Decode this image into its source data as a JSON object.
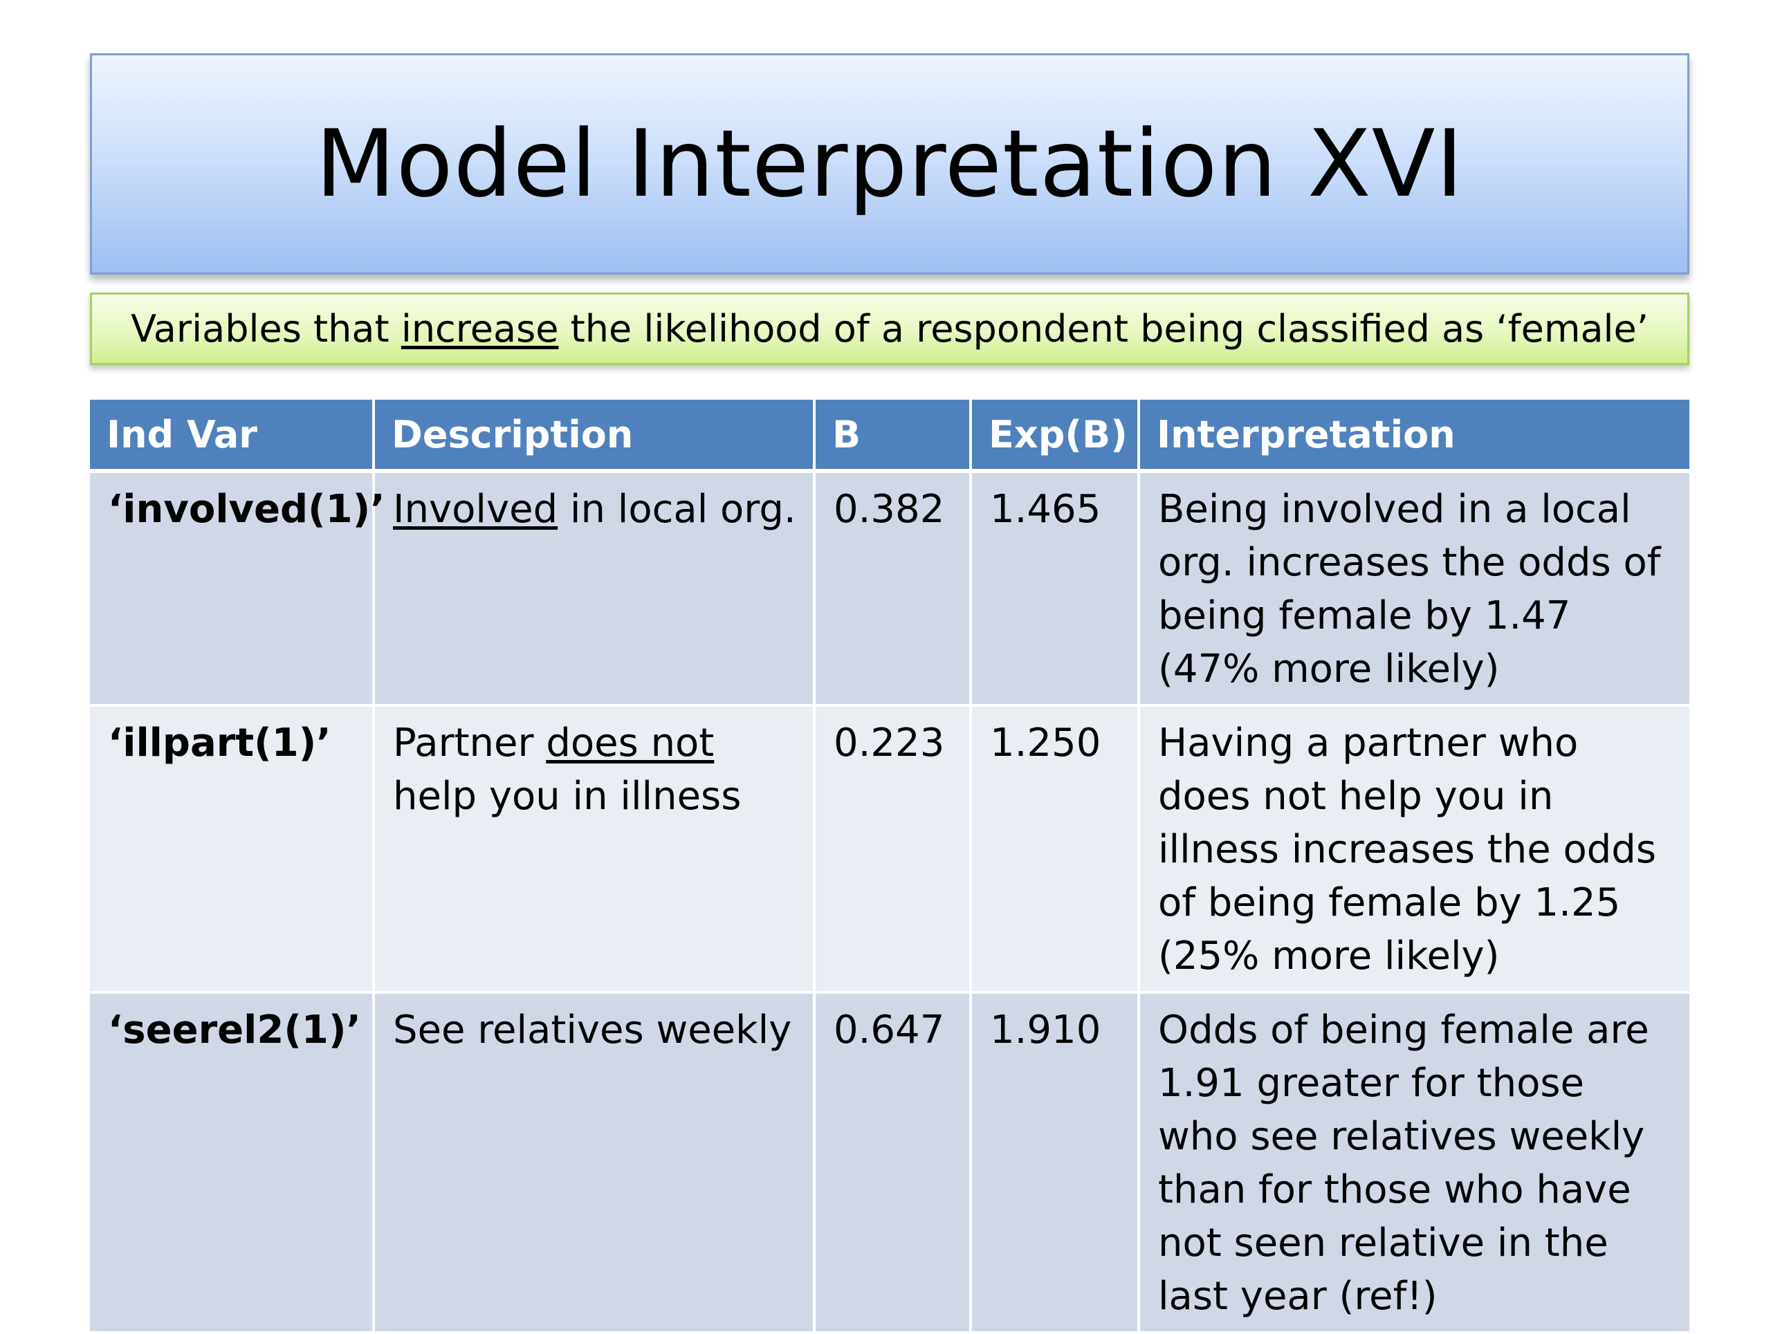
{
  "title": "Model Interpretation XVI",
  "subtitle": {
    "before": "Variables that ",
    "underlined": "increase",
    "after": " the likelihood of a respondent being classified as ‘female’"
  },
  "table": {
    "headers": [
      "Ind Var",
      "Description",
      "B",
      "Exp(B)",
      "Interpretation"
    ],
    "rows": [
      {
        "ind_var": "‘involved(1)’",
        "desc_pre": "",
        "desc_underlined": "Involved",
        "desc_post": " in local org.",
        "b": "0.382",
        "exp_b": "1.465",
        "interpretation": "Being involved in a local org. increases the odds of being female by 1.47 (47% more likely)"
      },
      {
        "ind_var": "‘illpart(1)’",
        "desc_pre": "Partner ",
        "desc_underlined": "does not",
        "desc_post": " help you in illness",
        "b": "0.223",
        "exp_b": "1.250",
        "interpretation": "Having a partner who does not help you in illness increases the odds of being female by 1.25 (25% more likely)"
      },
      {
        "ind_var": "‘seerel2(1)’",
        "desc_pre": "See relatives weekly",
        "desc_underlined": "",
        "desc_post": "",
        "b": "0.647",
        "exp_b": "1.910",
        "interpretation": "Odds of being female are 1.91 greater for those who see relatives weekly than for those who have not seen relative in the last year (ref!)"
      }
    ]
  }
}
